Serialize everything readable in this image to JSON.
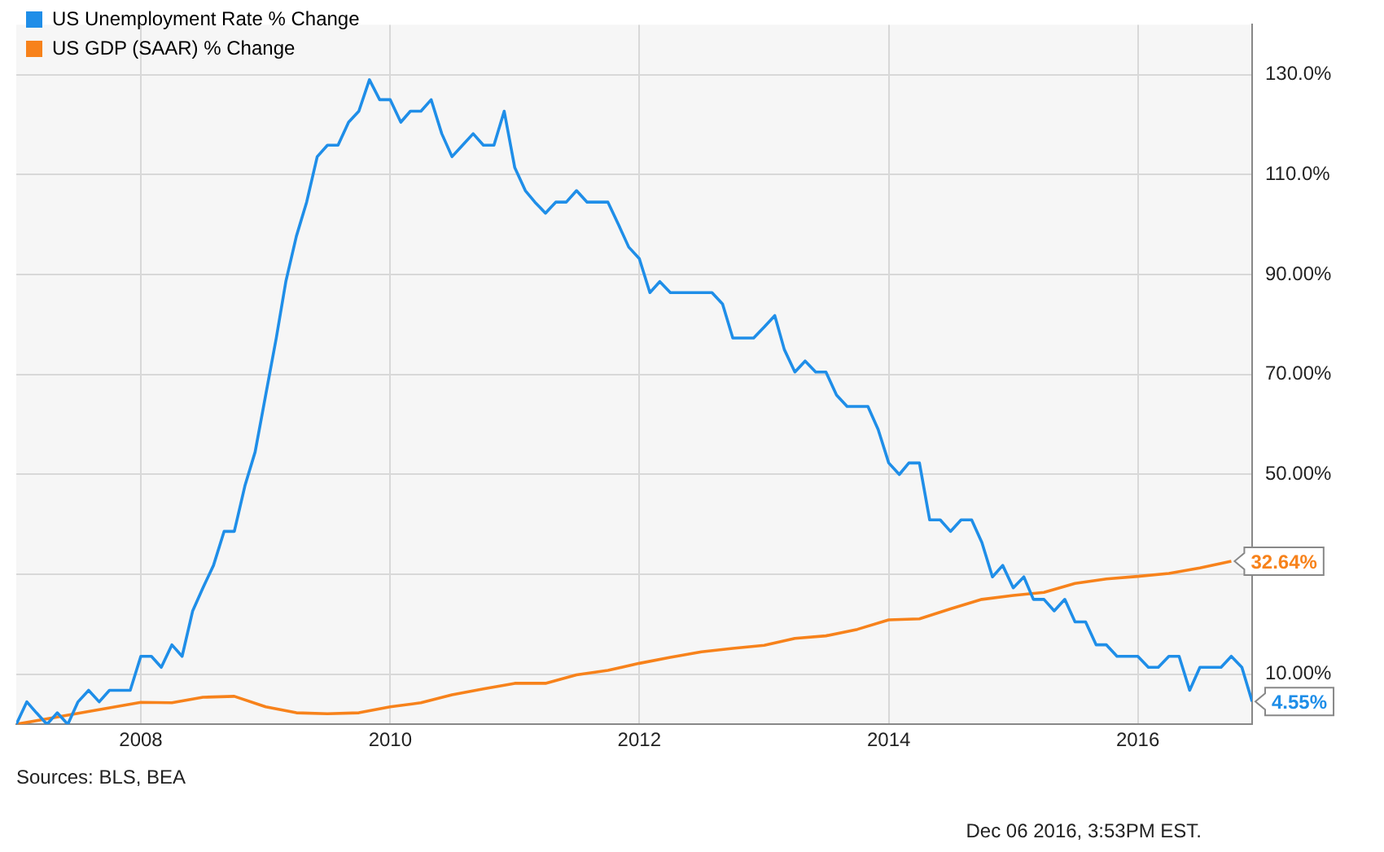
{
  "chart_data": {
    "type": "line",
    "legend": "top left",
    "grid": true,
    "marker": "none",
    "xlim": [
      "2007-01",
      "2016-12"
    ],
    "xticks": [
      {
        "value": "2008-01",
        "label": "2008"
      },
      {
        "value": "2010-01",
        "label": "2010"
      },
      {
        "value": "2012-01",
        "label": "2012"
      },
      {
        "value": "2014-01",
        "label": "2014"
      },
      {
        "value": "2016-01",
        "label": "2016"
      }
    ],
    "ylim": [
      0,
      140
    ],
    "yticks": [
      {
        "value": 10,
        "label": "10.00%"
      },
      {
        "value": 30,
        "label": null
      },
      {
        "value": 50,
        "label": "50.00%"
      },
      {
        "value": 70,
        "label": "70.00%"
      },
      {
        "value": 90,
        "label": "90.00%"
      },
      {
        "value": 110,
        "label": "110.0%"
      },
      {
        "value": 130,
        "label": "130.0%"
      }
    ],
    "annotations": [
      "Sources: BLS, BEA",
      "Dec 06 2016, 3:53PM EST."
    ],
    "series": [
      {
        "name": "US Unemployment Rate % Change",
        "color": "#1f8ee8",
        "x": [
          "2007-01",
          "2007-02",
          "2007-03",
          "2007-04",
          "2007-05",
          "2007-06",
          "2007-07",
          "2007-08",
          "2007-09",
          "2007-10",
          "2007-11",
          "2007-12",
          "2008-01",
          "2008-02",
          "2008-03",
          "2008-04",
          "2008-05",
          "2008-06",
          "2008-07",
          "2008-08",
          "2008-09",
          "2008-10",
          "2008-11",
          "2008-12",
          "2009-01",
          "2009-02",
          "2009-03",
          "2009-04",
          "2009-05",
          "2009-06",
          "2009-07",
          "2009-08",
          "2009-09",
          "2009-10",
          "2009-11",
          "2009-12",
          "2010-01",
          "2010-02",
          "2010-03",
          "2010-04",
          "2010-05",
          "2010-06",
          "2010-07",
          "2010-08",
          "2010-09",
          "2010-10",
          "2010-11",
          "2010-12",
          "2011-01",
          "2011-02",
          "2011-03",
          "2011-04",
          "2011-05",
          "2011-06",
          "2011-07",
          "2011-08",
          "2011-09",
          "2011-10",
          "2011-11",
          "2011-12",
          "2012-01",
          "2012-02",
          "2012-03",
          "2012-04",
          "2012-05",
          "2012-06",
          "2012-07",
          "2012-08",
          "2012-09",
          "2012-10",
          "2012-11",
          "2012-12",
          "2013-01",
          "2013-02",
          "2013-03",
          "2013-04",
          "2013-05",
          "2013-06",
          "2013-07",
          "2013-08",
          "2013-09",
          "2013-10",
          "2013-11",
          "2013-12",
          "2014-01",
          "2014-02",
          "2014-03",
          "2014-04",
          "2014-05",
          "2014-06",
          "2014-07",
          "2014-08",
          "2014-09",
          "2014-10",
          "2014-11",
          "2014-12",
          "2015-01",
          "2015-02",
          "2015-03",
          "2015-04",
          "2015-05",
          "2015-06",
          "2015-07",
          "2015-08",
          "2015-09",
          "2015-10",
          "2015-11",
          "2015-12",
          "2016-01",
          "2016-02",
          "2016-03",
          "2016-04",
          "2016-05",
          "2016-06",
          "2016-07",
          "2016-08",
          "2016-09",
          "2016-10",
          "2016-11",
          "2016-12"
        ],
        "values": [
          0,
          4.5,
          2.3,
          0,
          2.3,
          0,
          4.5,
          6.8,
          4.5,
          6.8,
          6.8,
          6.8,
          13.6,
          13.6,
          11.4,
          15.9,
          13.6,
          22.7,
          27.3,
          31.8,
          38.6,
          38.6,
          47.7,
          54.5,
          65.9,
          77.3,
          88.6,
          97.7,
          104.5,
          113.6,
          115.9,
          115.9,
          120.5,
          122.7,
          129,
          125,
          125,
          120.5,
          122.7,
          122.7,
          125,
          118.2,
          113.6,
          115.9,
          118.2,
          115.9,
          115.9,
          122.7,
          111.4,
          106.8,
          104.5,
          102.3,
          104.5,
          104.5,
          106.8,
          104.5,
          104.5,
          104.5,
          100,
          95.5,
          93.2,
          86.4,
          88.6,
          86.4,
          86.4,
          86.4,
          86.4,
          86.4,
          84.1,
          77.3,
          77.3,
          77.3,
          79.5,
          81.8,
          75,
          70.5,
          72.7,
          70.5,
          70.5,
          65.9,
          63.6,
          63.6,
          63.6,
          59,
          52.3,
          50,
          52.3,
          52.3,
          40.9,
          40.9,
          38.6,
          40.9,
          40.9,
          36.4,
          29.5,
          31.8,
          27.3,
          29.5,
          25,
          25,
          22.7,
          25,
          20.5,
          20.5,
          15.9,
          15.9,
          13.6,
          13.6,
          13.6,
          11.4,
          11.4,
          13.6,
          13.6,
          6.8,
          11.4,
          11.4,
          11.4,
          13.6,
          11.4,
          4.55
        ],
        "value_labels": [
          null,
          null,
          null,
          null,
          null,
          null,
          null,
          null,
          null,
          null,
          null,
          null,
          null,
          null,
          null,
          null,
          null,
          null,
          null,
          null,
          null,
          null,
          null,
          null,
          null,
          null,
          null,
          null,
          null,
          null,
          null,
          null,
          null,
          null,
          null,
          null,
          null,
          null,
          null,
          null,
          null,
          null,
          null,
          null,
          null,
          null,
          null,
          null,
          null,
          null,
          null,
          null,
          null,
          null,
          null,
          null,
          null,
          null,
          null,
          null,
          null,
          null,
          null,
          null,
          null,
          null,
          null,
          null,
          null,
          null,
          null,
          null,
          null,
          null,
          null,
          null,
          null,
          null,
          null,
          null,
          null,
          null,
          null,
          null,
          null,
          null,
          null,
          null,
          null,
          null,
          null,
          null,
          null,
          null,
          null,
          null,
          null,
          null,
          null,
          null,
          null,
          null,
          null,
          null,
          null,
          null,
          null,
          null,
          null,
          null,
          null,
          null,
          null,
          null,
          null,
          null,
          null,
          null,
          null,
          "4.55%"
        ]
      },
      {
        "name": "US GDP (SAAR) % Change",
        "color": "#f7821b",
        "x": [
          "2007-01",
          "2007-04",
          "2007-07",
          "2007-10",
          "2008-01",
          "2008-04",
          "2008-07",
          "2008-10",
          "2009-01",
          "2009-04",
          "2009-07",
          "2009-10",
          "2010-01",
          "2010-04",
          "2010-07",
          "2010-10",
          "2011-01",
          "2011-04",
          "2011-07",
          "2011-10",
          "2012-01",
          "2012-04",
          "2012-07",
          "2012-10",
          "2013-01",
          "2013-04",
          "2013-07",
          "2013-10",
          "2014-01",
          "2014-04",
          "2014-07",
          "2014-10",
          "2015-01",
          "2015-04",
          "2015-07",
          "2015-10",
          "2016-01",
          "2016-04",
          "2016-07",
          "2016-10"
        ],
        "values": [
          0,
          1.1,
          2.2,
          3.3,
          4.4,
          4.3,
          5.4,
          5.6,
          3.5,
          2.3,
          2.1,
          2.3,
          3.5,
          4.3,
          5.9,
          7.1,
          8.2,
          8.2,
          9.9,
          10.8,
          12.2,
          13.4,
          14.5,
          15.2,
          15.8,
          17.2,
          17.7,
          19.0,
          20.9,
          21.1,
          23.1,
          25.0,
          25.8,
          26.4,
          28.2,
          29.1,
          29.6,
          30.2,
          31.3,
          32.64
        ],
        "value_labels": [
          null,
          null,
          null,
          null,
          null,
          null,
          null,
          null,
          null,
          null,
          null,
          null,
          null,
          null,
          null,
          null,
          null,
          null,
          null,
          null,
          null,
          null,
          null,
          null,
          null,
          null,
          null,
          null,
          null,
          null,
          null,
          null,
          null,
          null,
          null,
          null,
          null,
          null,
          null,
          "32.64%"
        ]
      }
    ]
  }
}
